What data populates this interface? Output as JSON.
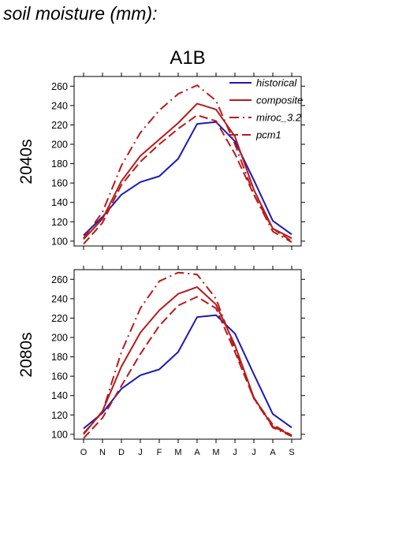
{
  "page": {
    "title": "soil moisture (mm):",
    "scenario": "A1B"
  },
  "chart_data": [
    {
      "type": "line",
      "panel_label": "2040s",
      "categories": [
        "O",
        "N",
        "D",
        "J",
        "F",
        "M",
        "A",
        "M",
        "J",
        "J",
        "A",
        "S"
      ],
      "ylim": [
        95,
        270
      ],
      "yticks": [
        100,
        120,
        140,
        160,
        180,
        200,
        220,
        240,
        260
      ],
      "legend": {
        "placement": "top-right"
      },
      "series": [
        {
          "name": "historical",
          "color": "#1a1ab8",
          "dash": "solid",
          "values": [
            106,
            125,
            148,
            161,
            167,
            185,
            221,
            223,
            203,
            163,
            121,
            107
          ]
        },
        {
          "name": "composite",
          "color": "#b81a1a",
          "dash": "solid",
          "values": [
            102,
            123,
            162,
            188,
            205,
            222,
            242,
            236,
            208,
            153,
            113,
            103
          ]
        },
        {
          "name": "miroc_3.2",
          "color": "#b81a1a",
          "dash": "dashdot",
          "values": [
            103,
            130,
            178,
            212,
            235,
            252,
            261,
            245,
            200,
            148,
            110,
            99
          ]
        },
        {
          "name": "pcm1",
          "color": "#b81a1a",
          "dash": "dash",
          "values": [
            97,
            119,
            158,
            182,
            200,
            216,
            230,
            224,
            190,
            148,
            113,
            100
          ]
        }
      ]
    },
    {
      "type": "line",
      "panel_label": "2080s",
      "categories": [
        "O",
        "N",
        "D",
        "J",
        "F",
        "M",
        "A",
        "M",
        "J",
        "J",
        "A",
        "S"
      ],
      "ylim": [
        95,
        270
      ],
      "yticks": [
        100,
        120,
        140,
        160,
        180,
        200,
        220,
        240,
        260
      ],
      "series": [
        {
          "name": "historical",
          "color": "#1a1ab8",
          "dash": "solid",
          "values": [
            106,
            122,
            147,
            161,
            167,
            185,
            221,
            223,
            204,
            162,
            121,
            107
          ]
        },
        {
          "name": "composite",
          "color": "#b81a1a",
          "dash": "solid",
          "values": [
            100,
            124,
            170,
            205,
            228,
            245,
            252,
            234,
            192,
            138,
            108,
            99
          ]
        },
        {
          "name": "miroc_3.2",
          "color": "#b81a1a",
          "dash": "dashdot",
          "values": [
            101,
            123,
            185,
            230,
            258,
            267,
            265,
            240,
            188,
            137,
            107,
            98
          ]
        },
        {
          "name": "pcm1",
          "color": "#b81a1a",
          "dash": "dash",
          "values": [
            96,
            117,
            150,
            183,
            212,
            233,
            242,
            230,
            185,
            137,
            110,
            99
          ]
        }
      ]
    }
  ]
}
